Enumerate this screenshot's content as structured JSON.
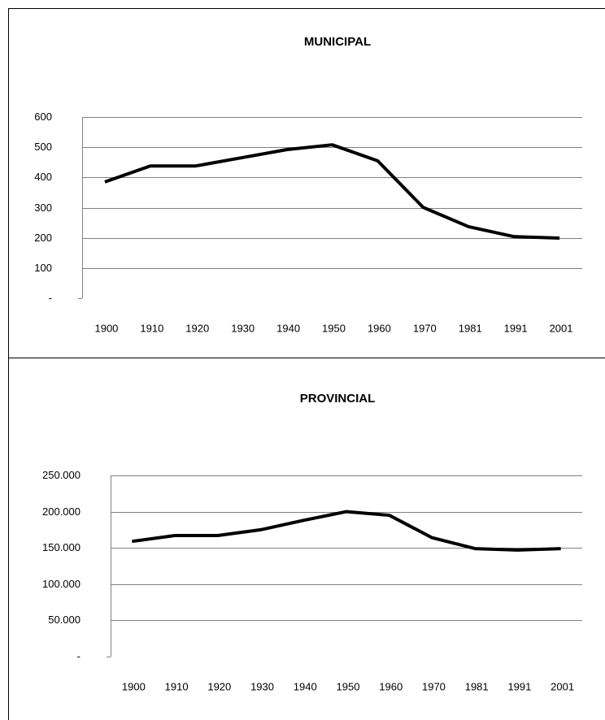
{
  "chart_data": [
    {
      "type": "line",
      "title": "MUNICIPAL",
      "categories": [
        "1900",
        "1910",
        "1920",
        "1930",
        "1940",
        "1950",
        "1960",
        "1970",
        "1981",
        "1991",
        "2001"
      ],
      "series": [
        {
          "color": "#000000",
          "values": [
            385,
            438,
            438,
            465,
            492,
            508,
            455,
            301,
            237,
            204,
            199
          ]
        }
      ],
      "ylim": [
        0,
        600
      ],
      "yticks": [
        {
          "value": 0,
          "label": "-"
        },
        100,
        200,
        300,
        400,
        500,
        600
      ],
      "grid": true
    },
    {
      "type": "line",
      "title": "PROVINCIAL",
      "categories": [
        "1900",
        "1910",
        "1920",
        "1930",
        "1940",
        "1950",
        "1960",
        "1970",
        "1981",
        "1991",
        "2001"
      ],
      "series": [
        {
          "color": "#000000",
          "values": [
            159000,
            167000,
            167000,
            175000,
            188000,
            200000,
            195000,
            164000,
            149000,
            147000,
            149000
          ]
        }
      ],
      "ylim": [
        0,
        250000
      ],
      "yticks": [
        {
          "value": 0,
          "label": "-"
        },
        {
          "value": 50000,
          "label": "50.000"
        },
        {
          "value": 100000,
          "label": "100.000"
        },
        {
          "value": 150000,
          "label": "150.000"
        },
        {
          "value": 200000,
          "label": "200.000"
        },
        {
          "value": 250000,
          "label": "250.000"
        }
      ],
      "grid": true
    }
  ]
}
